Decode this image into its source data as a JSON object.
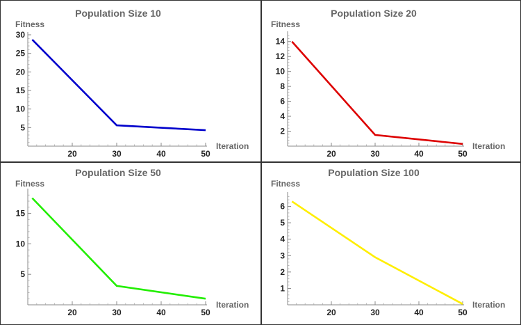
{
  "chart_data": [
    {
      "type": "line",
      "title": "Population Size 10",
      "xlabel": "Iteration",
      "ylabel": "Fitness",
      "x": [
        11,
        30,
        50
      ],
      "series": [
        {
          "values": [
            28.7,
            5.6,
            4.3
          ],
          "color": "#0000cc"
        }
      ],
      "xlim": [
        10,
        50
      ],
      "ylim": [
        0,
        30
      ],
      "xticks": [
        20,
        30,
        40,
        50
      ],
      "yticks": [
        5,
        10,
        15,
        20,
        25,
        30
      ],
      "grid": false
    },
    {
      "type": "line",
      "title": "Population Size 20",
      "xlabel": "Iteration",
      "ylabel": "Fitness",
      "x": [
        11,
        30,
        50
      ],
      "series": [
        {
          "values": [
            14.0,
            1.5,
            0.3
          ],
          "color": "#dd0000"
        }
      ],
      "xlim": [
        10,
        50
      ],
      "ylim": [
        0,
        15
      ],
      "xticks": [
        20,
        30,
        40,
        50
      ],
      "yticks": [
        2,
        4,
        6,
        8,
        10,
        12,
        14
      ],
      "grid": false
    },
    {
      "type": "line",
      "title": "Population Size 50",
      "xlabel": "Iteration",
      "ylabel": "Fitness",
      "x": [
        11,
        30,
        50
      ],
      "series": [
        {
          "values": [
            17.5,
            3.1,
            1.0
          ],
          "color": "#22ee00"
        }
      ],
      "xlim": [
        10,
        50
      ],
      "ylim": [
        0,
        18.6
      ],
      "xticks": [
        20,
        30,
        40,
        50
      ],
      "yticks": [
        5,
        10,
        15
      ],
      "grid": false
    },
    {
      "type": "line",
      "title": "Population Size 100",
      "xlabel": "Iteration",
      "ylabel": "Fitness",
      "x": [
        11,
        30,
        50
      ],
      "series": [
        {
          "values": [
            6.3,
            2.9,
            0.05
          ],
          "color": "#ffee00"
        }
      ],
      "xlim": [
        10,
        50
      ],
      "ylim": [
        0,
        6.7
      ],
      "xticks": [
        20,
        30,
        40,
        50
      ],
      "yticks": [
        1,
        2,
        3,
        4,
        5,
        6
      ],
      "grid": false
    }
  ]
}
